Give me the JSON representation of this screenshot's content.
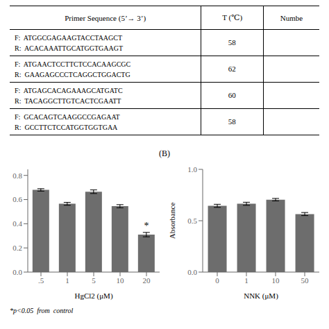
{
  "title": "(B)",
  "chart_data": [
    {
      "type": "table",
      "columns": [
        "Primer Sequence (5’→ 3’)",
        "T (℃)",
        "Numbe"
      ],
      "rows": [
        [
          [
            "F:  ATGGCGAGAAGTACCTAAGCT",
            "R:  ACACAAATTGCATGGTGAAGT"
          ],
          "58"
        ],
        [
          [
            "F:  ATGAACTCCTTCTCCACAAGCGC",
            "R:  GAAGAGCCCTCAGGCTGGACTG"
          ],
          "62"
        ],
        [
          [
            "F:  ATGAGCACAGAAAGCATGATC",
            "R:  TACAGGCTTGTCACTCGAATT"
          ],
          "60"
        ],
        [
          [
            "F:  GCACAGTCAAGGCCGAGAAT",
            "R:  GCCTTCTCCATGGTGGTGAA"
          ],
          "58"
        ]
      ]
    },
    {
      "type": "bar",
      "categories": [
        ".5",
        "1",
        "5",
        "10",
        "20"
      ],
      "values": [
        0.68,
        0.565,
        0.665,
        0.545,
        0.31
      ],
      "errors": [
        0.01,
        0.012,
        0.015,
        0.013,
        0.018
      ],
      "xlabel": "HgCl2 (μM)",
      "ylim": [
        0,
        0.85
      ],
      "yticks": [
        {
          "value": 0,
          "label": "0.0"
        },
        0.2,
        0.4,
        0.6,
        0.8
      ],
      "color": "#6d6d6d",
      "annotations": [
        {
          "text": "*",
          "category": "20"
        },
        {
          "text": "*p<0.05  from  control"
        }
      ]
    },
    {
      "type": "bar",
      "categories": [
        "0",
        "1",
        "10",
        "50"
      ],
      "values": [
        0.645,
        0.665,
        0.705,
        0.565
      ],
      "errors": [
        0.015,
        0.015,
        0.012,
        0.015
      ],
      "xlabel": "NNK (μM)",
      "ylabel": "Absorbance",
      "ylim": [
        0,
        1.0
      ],
      "yticks": [
        {
          "value": 0,
          "label": "0.0"
        },
        0.5,
        {
          "value": 1,
          "label": "1.0"
        }
      ],
      "color": "#6d6d6d"
    }
  ]
}
